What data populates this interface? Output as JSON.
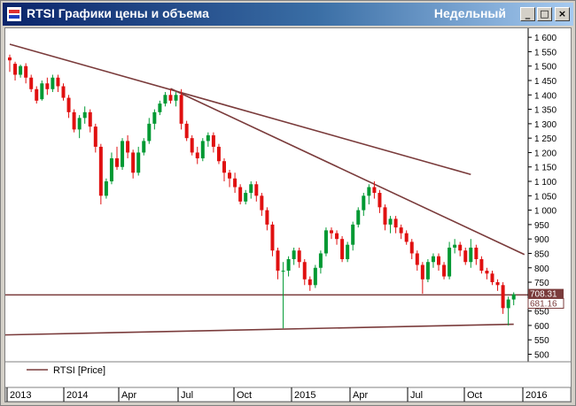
{
  "window": {
    "title": "RTSI Графики цены и объема",
    "period": "Недельный",
    "buttons": {
      "minimize": "_",
      "maximize": "□",
      "close": "×"
    }
  },
  "chart_data": {
    "type": "candlestick",
    "series_name": "RTSI [Price]",
    "price_labels": {
      "current": "708.31",
      "previous": "681.16"
    },
    "y_ticks": [
      1600,
      1550,
      1500,
      1450,
      1400,
      1350,
      1300,
      1250,
      1200,
      1150,
      1100,
      1050,
      1000,
      950,
      900,
      850,
      800,
      750,
      700,
      650,
      600,
      550,
      500
    ],
    "ylim": [
      480,
      1625
    ],
    "x_labels": [
      "2013",
      "2014",
      "Apr",
      "Jul",
      "Oct",
      "2015",
      "Apr",
      "Jul",
      "Oct",
      "2016"
    ],
    "colors": {
      "up": "#009933",
      "down": "#e01010",
      "trendline": "#7a3b3b",
      "axis": "#000000"
    },
    "trendlines": [
      {
        "from": [
          0,
          1576
        ],
        "to": [
          86,
          1124
        ]
      },
      {
        "from": [
          30,
          1422
        ],
        "to": [
          96,
          846
        ]
      },
      {
        "from": [
          -1,
          706
        ],
        "to": [
          97,
          706
        ]
      },
      {
        "from": [
          -1,
          567
        ],
        "to": [
          94,
          604
        ]
      }
    ],
    "candles": [
      [
        1530,
        1520,
        1480,
        1540
      ],
      [
        1508,
        1470,
        1450,
        1515
      ],
      [
        1470,
        1500,
        1460,
        1505
      ],
      [
        1500,
        1460,
        1440,
        1510
      ],
      [
        1460,
        1420,
        1410,
        1470
      ],
      [
        1420,
        1380,
        1370,
        1430
      ],
      [
        1385,
        1440,
        1380,
        1450
      ],
      [
        1440,
        1420,
        1400,
        1460
      ],
      [
        1420,
        1460,
        1410,
        1470
      ],
      [
        1460,
        1430,
        1410,
        1470
      ],
      [
        1430,
        1390,
        1380,
        1440
      ],
      [
        1390,
        1340,
        1320,
        1400
      ],
      [
        1340,
        1280,
        1270,
        1350
      ],
      [
        1280,
        1320,
        1250,
        1330
      ],
      [
        1320,
        1340,
        1300,
        1360
      ],
      [
        1340,
        1290,
        1270,
        1350
      ],
      [
        1290,
        1220,
        1200,
        1300
      ],
      [
        1220,
        1050,
        1020,
        1230
      ],
      [
        1050,
        1100,
        1040,
        1110
      ],
      [
        1100,
        1180,
        1090,
        1200
      ],
      [
        1180,
        1150,
        1140,
        1220
      ],
      [
        1150,
        1240,
        1140,
        1250
      ],
      [
        1240,
        1200,
        1180,
        1260
      ],
      [
        1200,
        1130,
        1110,
        1210
      ],
      [
        1130,
        1200,
        1120,
        1220
      ],
      [
        1200,
        1240,
        1190,
        1250
      ],
      [
        1240,
        1300,
        1230,
        1320
      ],
      [
        1300,
        1340,
        1280,
        1350
      ],
      [
        1340,
        1370,
        1330,
        1380
      ],
      [
        1370,
        1400,
        1360,
        1410
      ],
      [
        1400,
        1380,
        1370,
        1420
      ],
      [
        1380,
        1400,
        1360,
        1410
      ],
      [
        1400,
        1300,
        1280,
        1420
      ],
      [
        1300,
        1250,
        1240,
        1310
      ],
      [
        1250,
        1200,
        1190,
        1260
      ],
      [
        1200,
        1180,
        1160,
        1220
      ],
      [
        1180,
        1240,
        1170,
        1250
      ],
      [
        1240,
        1260,
        1220,
        1270
      ],
      [
        1260,
        1220,
        1200,
        1270
      ],
      [
        1220,
        1170,
        1160,
        1230
      ],
      [
        1170,
        1130,
        1100,
        1180
      ],
      [
        1130,
        1110,
        1080,
        1140
      ],
      [
        1110,
        1080,
        1060,
        1130
      ],
      [
        1080,
        1030,
        1020,
        1090
      ],
      [
        1030,
        1060,
        1020,
        1070
      ],
      [
        1060,
        1090,
        1040,
        1100
      ],
      [
        1090,
        1050,
        1030,
        1100
      ],
      [
        1050,
        1000,
        980,
        1060
      ],
      [
        1000,
        950,
        930,
        1010
      ],
      [
        950,
        860,
        840,
        960
      ],
      [
        860,
        790,
        760,
        870
      ],
      [
        790,
        790,
        590,
        820
      ],
      [
        790,
        830,
        770,
        840
      ],
      [
        830,
        860,
        810,
        870
      ],
      [
        860,
        820,
        800,
        870
      ],
      [
        820,
        760,
        740,
        830
      ],
      [
        760,
        740,
        720,
        770
      ],
      [
        740,
        800,
        730,
        810
      ],
      [
        800,
        850,
        780,
        860
      ],
      [
        850,
        930,
        840,
        940
      ],
      [
        930,
        920,
        900,
        940
      ],
      [
        920,
        900,
        880,
        930
      ],
      [
        900,
        830,
        820,
        910
      ],
      [
        830,
        880,
        820,
        890
      ],
      [
        880,
        950,
        860,
        960
      ],
      [
        950,
        1000,
        940,
        1010
      ],
      [
        1000,
        1050,
        980,
        1060
      ],
      [
        1050,
        1080,
        1020,
        1090
      ],
      [
        1080,
        1060,
        1040,
        1100
      ],
      [
        1060,
        1010,
        990,
        1070
      ],
      [
        1010,
        950,
        930,
        1020
      ],
      [
        950,
        970,
        920,
        980
      ],
      [
        970,
        940,
        920,
        980
      ],
      [
        940,
        920,
        900,
        950
      ],
      [
        920,
        890,
        880,
        930
      ],
      [
        890,
        850,
        830,
        900
      ],
      [
        850,
        810,
        790,
        860
      ],
      [
        810,
        760,
        710,
        820
      ],
      [
        760,
        820,
        750,
        830
      ],
      [
        820,
        840,
        800,
        850
      ],
      [
        840,
        810,
        790,
        850
      ],
      [
        810,
        770,
        760,
        820
      ],
      [
        770,
        870,
        760,
        890
      ],
      [
        870,
        880,
        850,
        900
      ],
      [
        880,
        860,
        840,
        890
      ],
      [
        860,
        820,
        810,
        870
      ],
      [
        820,
        870,
        800,
        900
      ],
      [
        870,
        830,
        810,
        880
      ],
      [
        830,
        790,
        780,
        840
      ],
      [
        790,
        780,
        760,
        800
      ],
      [
        780,
        750,
        740,
        790
      ],
      [
        750,
        740,
        720,
        760
      ],
      [
        740,
        660,
        640,
        750
      ],
      [
        660,
        690,
        600,
        700
      ],
      [
        690,
        708,
        670,
        715
      ]
    ]
  }
}
